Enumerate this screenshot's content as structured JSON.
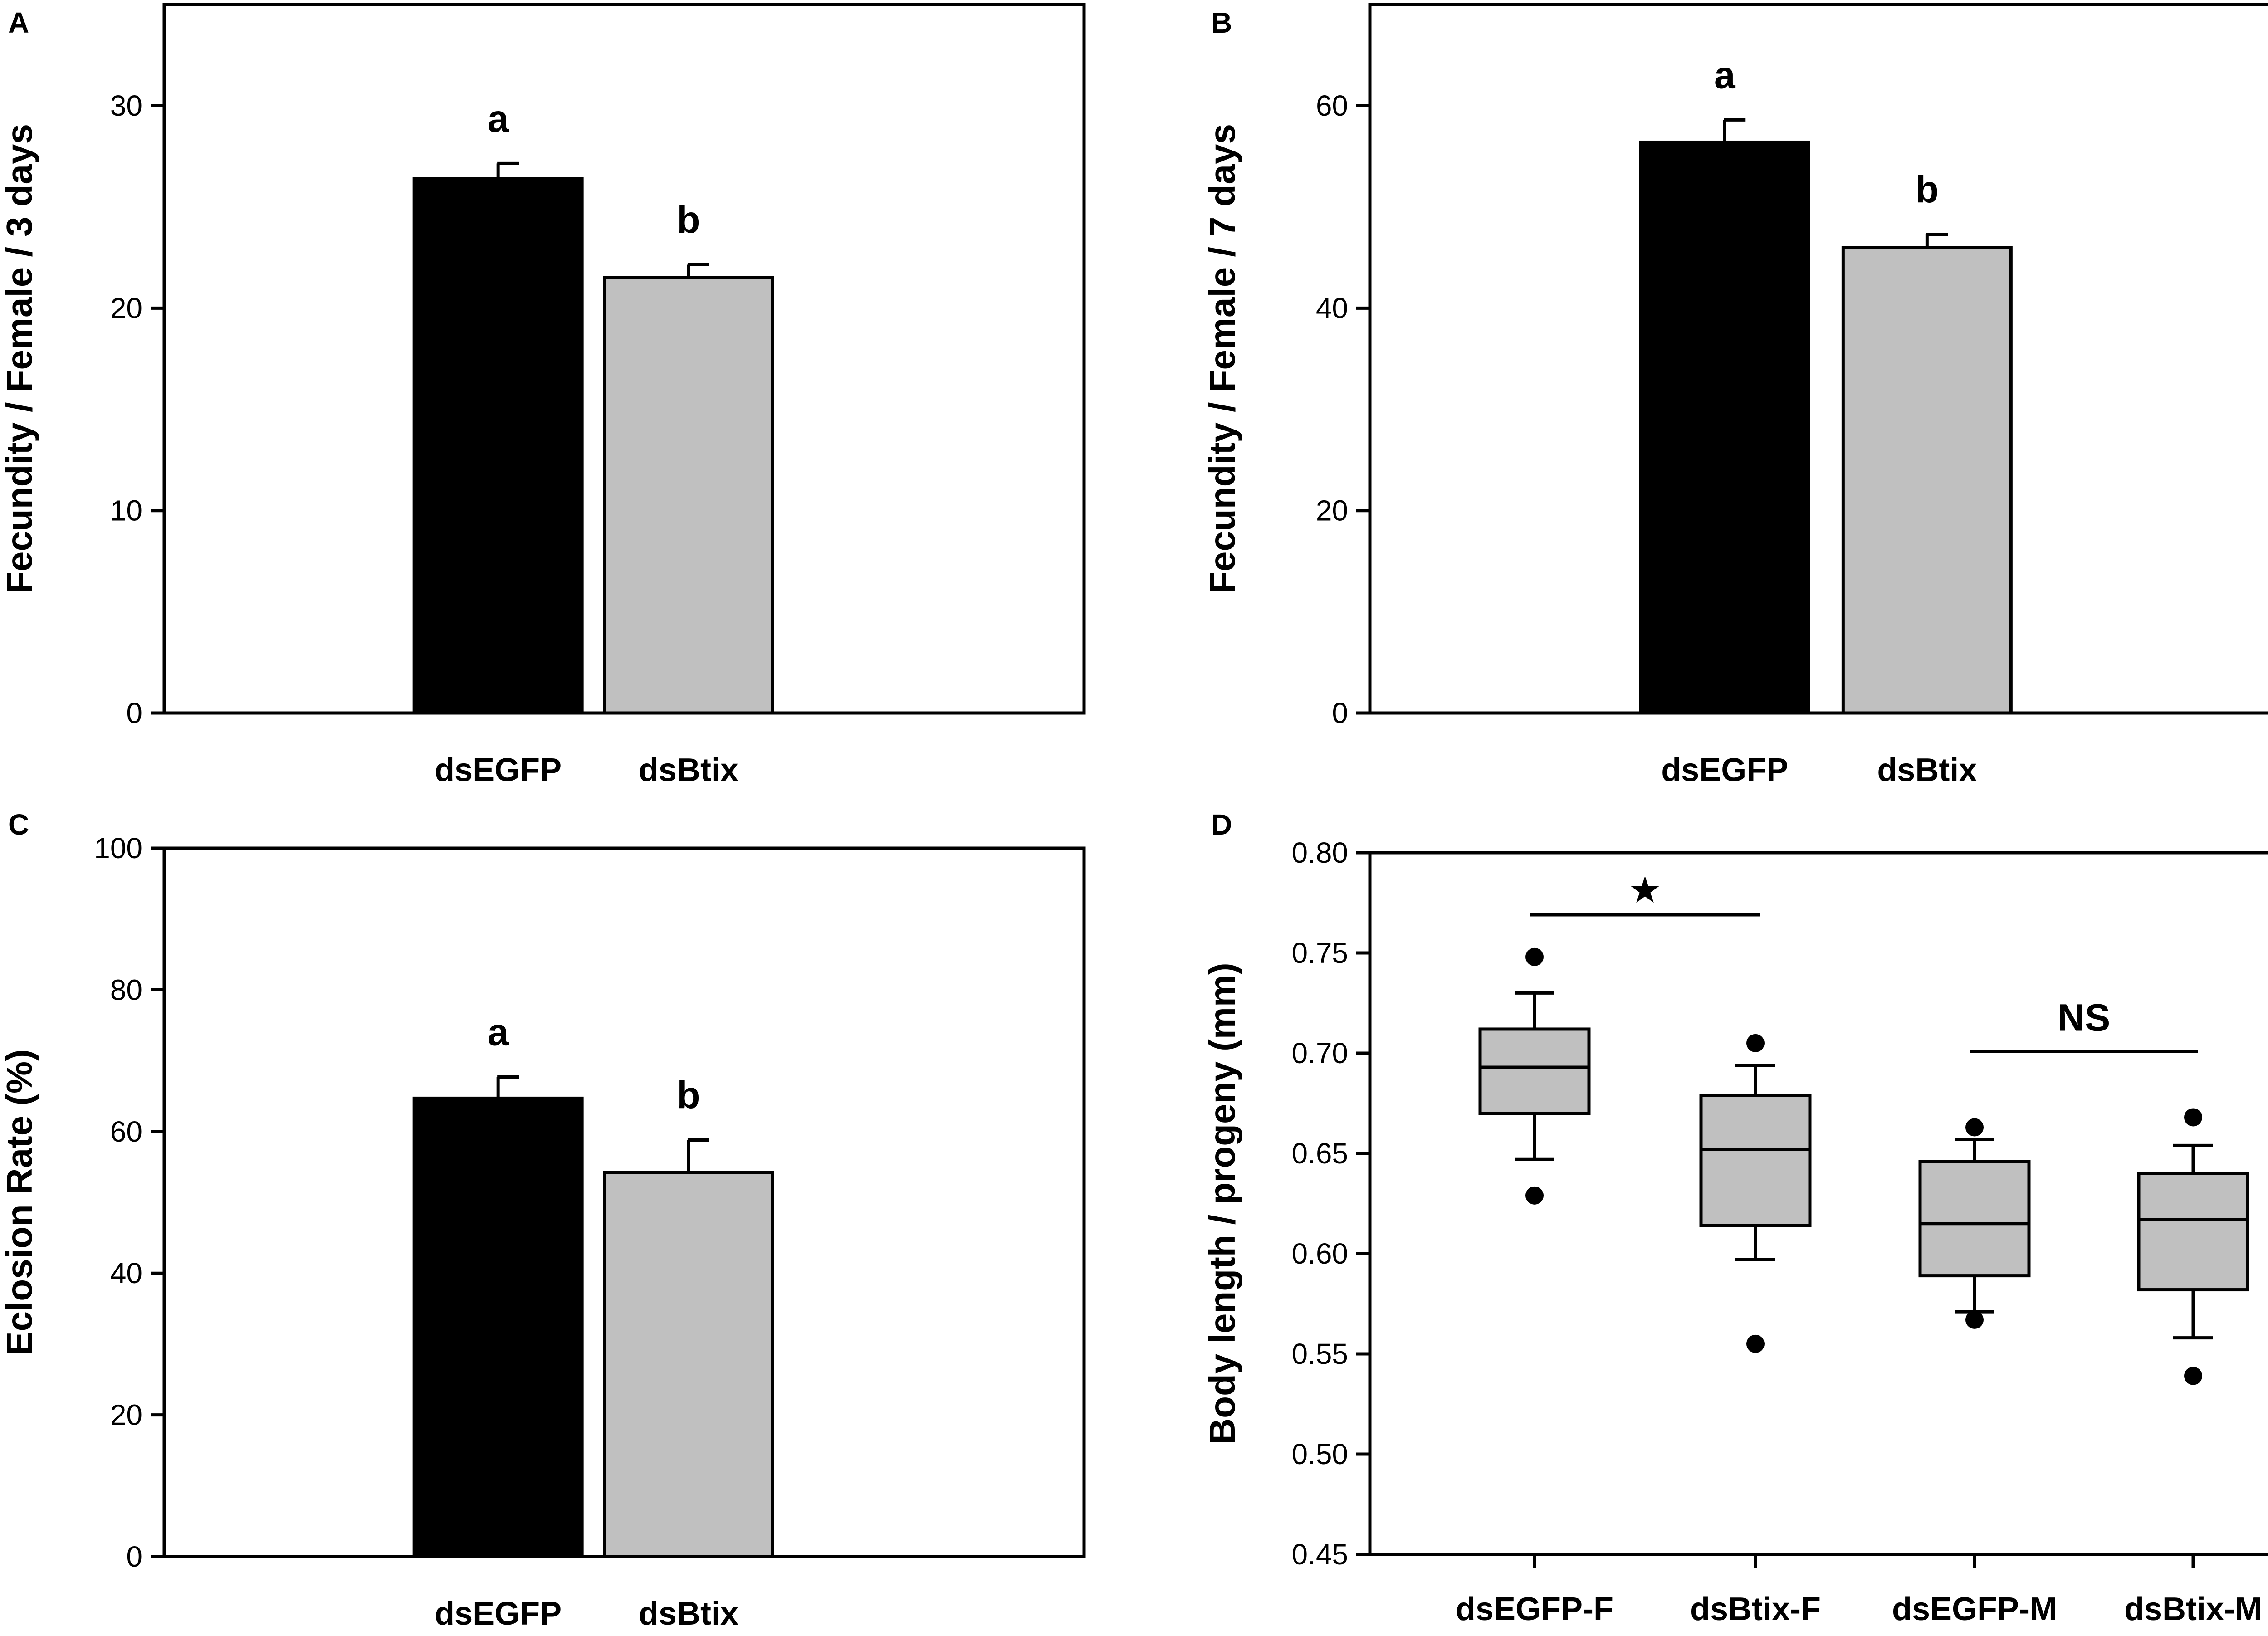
{
  "chart_data": [
    {
      "panel_label": "A",
      "type": "bar",
      "categories": [
        "dsEGFP",
        "dsBtix"
      ],
      "values": [
        26.4,
        21.5
      ],
      "errors": [
        0.75,
        0.65
      ],
      "significance_letters": [
        "a",
        "b"
      ],
      "bar_colors": [
        "#000000",
        "#c0c0c0"
      ],
      "ylabel": "Fecundity / Female / 3 days",
      "xlabel": "",
      "ylim": [
        0,
        35
      ],
      "yticks": [
        0,
        10,
        20,
        30
      ],
      "grid": false
    },
    {
      "panel_label": "B",
      "type": "bar",
      "categories": [
        "dsEGFP",
        "dsBtix"
      ],
      "values": [
        56.4,
        46.0
      ],
      "errors": [
        2.2,
        1.3
      ],
      "significance_letters": [
        "a",
        "b"
      ],
      "bar_colors": [
        "#000000",
        "#c0c0c0"
      ],
      "ylabel": "Fecundity / Female / 7 days",
      "xlabel": "",
      "ylim": [
        0,
        70
      ],
      "yticks": [
        0,
        20,
        40,
        60
      ],
      "grid": false
    },
    {
      "panel_label": "C",
      "type": "bar",
      "categories": [
        "dsEGFP",
        "dsBtix"
      ],
      "values": [
        64.7,
        54.2
      ],
      "errors": [
        3.0,
        4.6
      ],
      "significance_letters": [
        "a",
        "b"
      ],
      "bar_colors": [
        "#000000",
        "#c0c0c0"
      ],
      "ylabel": "Eclosion Rate (%)",
      "xlabel": "",
      "ylim": [
        0,
        100
      ],
      "yticks": [
        0,
        20,
        40,
        60,
        80,
        100
      ],
      "grid": false
    },
    {
      "panel_label": "D",
      "type": "box",
      "categories": [
        "dsEGFP-F",
        "dsBtix-F",
        "dsEGFP-M",
        "dsBtix-M"
      ],
      "boxes": [
        {
          "whisker_low": 0.647,
          "q1": 0.67,
          "median": 0.693,
          "q3": 0.712,
          "whisker_high": 0.73,
          "outliers": [
            0.629,
            0.748
          ]
        },
        {
          "whisker_low": 0.597,
          "q1": 0.614,
          "median": 0.652,
          "q3": 0.679,
          "whisker_high": 0.694,
          "outliers": [
            0.555,
            0.705
          ]
        },
        {
          "whisker_low": 0.571,
          "q1": 0.589,
          "median": 0.615,
          "q3": 0.646,
          "whisker_high": 0.657,
          "outliers": [
            0.567,
            0.663
          ]
        },
        {
          "whisker_low": 0.558,
          "q1": 0.582,
          "median": 0.617,
          "q3": 0.64,
          "whisker_high": 0.654,
          "outliers": [
            0.539,
            0.668
          ]
        }
      ],
      "box_color": "#c0c0c0",
      "comparisons": [
        {
          "from": 0,
          "to": 1,
          "label": "★",
          "y": 0.769
        },
        {
          "from": 2,
          "to": 3,
          "label": "NS",
          "y": 0.701
        }
      ],
      "ylabel": "Body length / progeny (mm)",
      "xlabel": "",
      "ylim": [
        0.45,
        0.8
      ],
      "yticks": [
        "0.45",
        "0.50",
        "0.55",
        "0.60",
        "0.65",
        "0.70",
        "0.75",
        "0.80"
      ],
      "grid": false
    }
  ]
}
